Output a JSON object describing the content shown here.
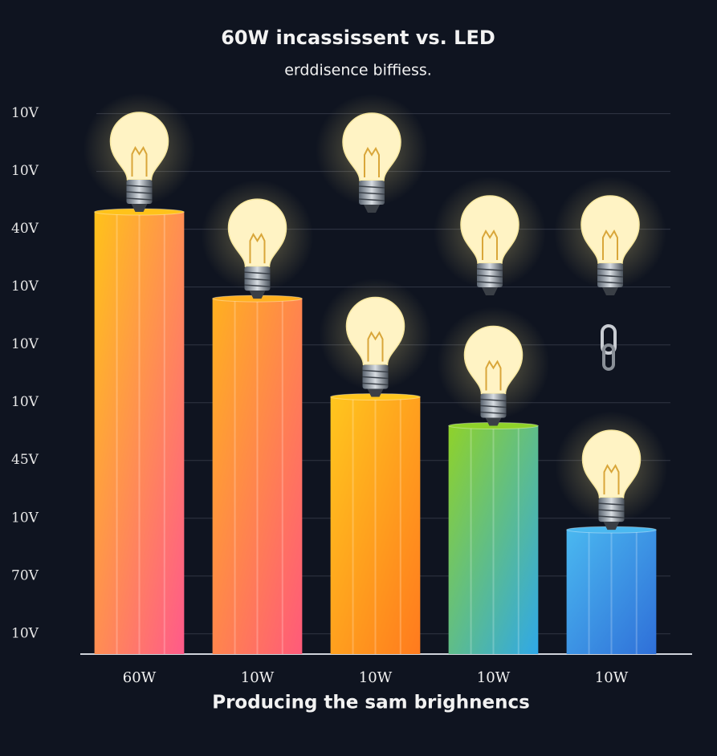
{
  "chart_data": {
    "type": "bar",
    "title": "60W incassissent vs. LED",
    "subtitle": "erddisence biffiess.",
    "x_label": "Producing the sam brighnencs",
    "categories": [
      "60W",
      "10W",
      "10W",
      "10W",
      "10W"
    ],
    "values": [
      8.3,
      6.8,
      5.1,
      4.6,
      2.8
    ],
    "colors": [
      [
        "#ffc21a",
        "#ff5a8a"
      ],
      [
        "#ffb020",
        "#ff5a7a"
      ],
      [
        "#ffc61e",
        "#ff7a1e"
      ],
      [
        "#8fd22a",
        "#2fa8e8"
      ],
      [
        "#4ab8f0",
        "#2f6fd8"
      ]
    ],
    "ylim": [
      0.65,
      10.3
    ],
    "yticks": [
      {
        "value": 1,
        "label": "10V"
      },
      {
        "value": 2,
        "label": "70V"
      },
      {
        "value": 3,
        "label": "10V"
      },
      {
        "value": 4,
        "label": "45V"
      },
      {
        "value": 5,
        "label": "10V"
      },
      {
        "value": 6,
        "label": "10V"
      },
      {
        "value": 7,
        "label": "10V"
      },
      {
        "value": 8,
        "label": "40V"
      },
      {
        "value": 9,
        "label": "10V"
      },
      {
        "value": 10,
        "label": "10V"
      }
    ],
    "grid": true
  }
}
